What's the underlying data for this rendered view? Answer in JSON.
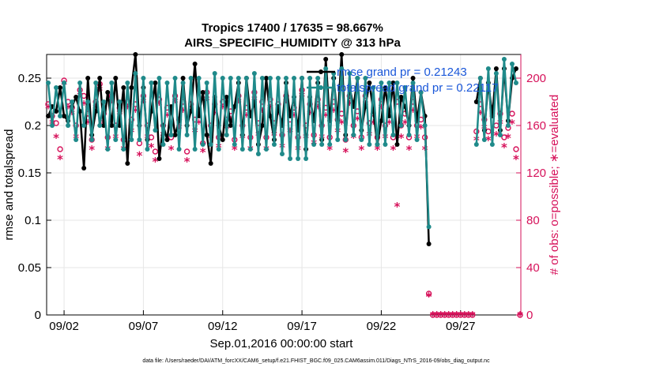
{
  "chart_data": {
    "type": "line",
    "title": "Tropics 17400 / 17635 = 98.667%",
    "subtitle": "AIRS_SPECIFIC_HUMIDITY @ 313 hPa",
    "xlabel": "Sep.01,2016 00:00:00 start",
    "ylabel": "rmse and totalspread",
    "y2label": "# of obs: o=possible; ∗=evaluated",
    "footer": "data file: /Users/raeder/DAI/ATM_forcXX/CAM6_setup/f.e21.FHIST_BGC.f09_025.CAM6assim.011/Diags_NTrS_2016-09/obs_diag_output.nc",
    "xlim": [
      0.9,
      30.8
    ],
    "ylim": [
      0,
      0.275
    ],
    "y2lim": [
      0,
      220
    ],
    "x_ticks": [
      2,
      7,
      12,
      17,
      22,
      27
    ],
    "x_tick_labels": [
      "09/02",
      "09/07",
      "09/12",
      "09/17",
      "09/22",
      "09/27"
    ],
    "y_ticks": [
      0,
      0.05,
      0.1,
      0.15,
      0.2,
      0.25
    ],
    "y_tick_labels": [
      "0",
      "0.05",
      "0.1",
      "0.15",
      "0.2",
      "0.25"
    ],
    "y2_ticks": [
      0,
      40,
      80,
      120,
      160,
      200
    ],
    "y2_tick_labels": [
      "0",
      "40",
      "80",
      "120",
      "160",
      "200"
    ],
    "legend": [
      {
        "label": "rmse grand pr = 0.21243",
        "color": "#000000"
      },
      {
        "label": "totalspread grand pr = 0.22117",
        "color": "#1f8a8a"
      }
    ],
    "series": [
      {
        "name": "rmse",
        "color": "#000000",
        "axis": "left",
        "x": [
          1.0,
          1.25,
          1.5,
          1.75,
          2.0,
          2.25,
          2.5,
          2.75,
          3.0,
          3.25,
          3.5,
          3.75,
          4.0,
          4.25,
          4.5,
          4.75,
          5.0,
          5.25,
          5.5,
          5.75,
          6.0,
          6.25,
          6.5,
          6.75,
          7.0,
          7.25,
          7.5,
          7.75,
          8.0,
          8.25,
          8.5,
          8.75,
          9.0,
          9.25,
          9.5,
          9.75,
          10.0,
          10.25,
          10.5,
          10.75,
          11.0,
          11.25,
          11.5,
          11.75,
          12.0,
          12.25,
          12.5,
          12.75,
          13.0,
          13.25,
          13.5,
          13.75,
          14.0,
          14.25,
          14.5,
          14.75,
          15.0,
          15.25,
          15.5,
          15.75,
          16.0,
          16.25,
          16.5,
          16.75,
          17.0,
          17.25,
          17.5,
          17.75,
          18.0,
          18.25,
          18.5,
          18.75,
          19.0,
          19.25,
          19.5,
          19.75,
          20.0,
          20.25,
          20.5,
          20.75,
          21.0,
          21.25,
          21.5,
          21.75,
          22.0,
          22.25,
          22.5,
          22.75,
          23.0,
          23.25,
          23.5,
          23.75,
          24.0,
          24.25,
          24.5,
          24.75,
          25.0,
          28.0,
          28.25,
          28.5,
          28.75,
          29.0,
          29.25,
          29.5,
          29.75,
          30.0,
          30.25,
          30.5
        ],
        "values": [
          0.21,
          0.22,
          0.215,
          0.24,
          0.21,
          0.205,
          0.22,
          0.23,
          0.215,
          0.155,
          0.25,
          0.19,
          0.215,
          0.25,
          0.2,
          0.235,
          0.2,
          0.25,
          0.2,
          0.24,
          0.16,
          0.24,
          0.275,
          0.2,
          0.24,
          0.185,
          0.215,
          0.245,
          0.165,
          0.2,
          0.185,
          0.22,
          0.19,
          0.205,
          0.25,
          0.2,
          0.215,
          0.265,
          0.21,
          0.235,
          0.19,
          0.16,
          0.23,
          0.2,
          0.185,
          0.23,
          0.2,
          0.22,
          0.245,
          0.19,
          0.25,
          0.21,
          0.225,
          0.18,
          0.2,
          0.25,
          0.21,
          0.185,
          0.22,
          0.2,
          0.245,
          0.21,
          0.23,
          0.195,
          0.25,
          0.175,
          0.23,
          0.205,
          0.245,
          0.185,
          0.27,
          0.205,
          0.25,
          0.205,
          0.275,
          0.19,
          0.24,
          0.22,
          0.25,
          0.195,
          0.22,
          0.245,
          0.215,
          0.18,
          0.205,
          0.24,
          0.21,
          0.245,
          0.18,
          0.23,
          0.22,
          0.2,
          0.25,
          0.205,
          0.235,
          0.21,
          0.075,
          0.225,
          0.25,
          0.195,
          0.245,
          0.21,
          0.26,
          0.195,
          0.26,
          0.205,
          0.25,
          0.26
        ]
      },
      {
        "name": "totalspread",
        "color": "#1f8a8a",
        "axis": "left",
        "x": [
          1.0,
          1.25,
          1.5,
          1.75,
          2.0,
          2.25,
          2.5,
          2.75,
          3.0,
          3.25,
          3.5,
          3.75,
          4.0,
          4.25,
          4.5,
          4.75,
          5.0,
          5.25,
          5.5,
          5.75,
          6.0,
          6.25,
          6.5,
          6.75,
          7.0,
          7.25,
          7.5,
          7.75,
          8.0,
          8.25,
          8.5,
          8.75,
          9.0,
          9.25,
          9.5,
          9.75,
          10.0,
          10.25,
          10.5,
          10.75,
          11.0,
          11.25,
          11.5,
          11.75,
          12.0,
          12.25,
          12.5,
          12.75,
          13.0,
          13.25,
          13.5,
          13.75,
          14.0,
          14.25,
          14.5,
          14.75,
          15.0,
          15.25,
          15.5,
          15.75,
          16.0,
          16.25,
          16.5,
          16.75,
          17.0,
          17.25,
          17.5,
          17.75,
          18.0,
          18.25,
          18.5,
          18.75,
          19.0,
          19.25,
          19.5,
          19.75,
          20.0,
          20.25,
          20.5,
          20.75,
          21.0,
          21.25,
          21.5,
          21.75,
          22.0,
          22.25,
          22.5,
          22.75,
          23.0,
          23.25,
          23.5,
          23.75,
          24.0,
          24.25,
          24.5,
          24.75,
          25.0,
          28.0,
          28.25,
          28.5,
          28.75,
          29.0,
          29.25,
          29.5,
          29.75,
          30.0,
          30.25,
          30.5
        ],
        "values": [
          0.245,
          0.2,
          0.24,
          0.21,
          0.245,
          0.2,
          0.225,
          0.185,
          0.245,
          0.2,
          0.225,
          0.185,
          0.245,
          0.2,
          0.225,
          0.175,
          0.245,
          0.185,
          0.225,
          0.175,
          0.245,
          0.185,
          0.255,
          0.185,
          0.25,
          0.175,
          0.245,
          0.195,
          0.25,
          0.18,
          0.245,
          0.19,
          0.25,
          0.175,
          0.245,
          0.19,
          0.25,
          0.175,
          0.25,
          0.18,
          0.245,
          0.18,
          0.255,
          0.175,
          0.25,
          0.19,
          0.25,
          0.18,
          0.25,
          0.175,
          0.25,
          0.175,
          0.255,
          0.17,
          0.25,
          0.175,
          0.25,
          0.18,
          0.25,
          0.17,
          0.25,
          0.165,
          0.25,
          0.165,
          0.25,
          0.165,
          0.25,
          0.18,
          0.25,
          0.18,
          0.26,
          0.18,
          0.255,
          0.185,
          0.26,
          0.185,
          0.255,
          0.19,
          0.25,
          0.185,
          0.25,
          0.18,
          0.24,
          0.18,
          0.245,
          0.18,
          0.245,
          0.19,
          0.245,
          0.2,
          0.24,
          0.19,
          0.245,
          0.185,
          0.235,
          0.2,
          0.093,
          0.18,
          0.25,
          0.185,
          0.26,
          0.18,
          0.255,
          0.19,
          0.27,
          0.2,
          0.265,
          0.245
        ]
      },
      {
        "name": "obs possible",
        "color": "#d6115a",
        "axis": "right",
        "marker": "o",
        "x": [
          1.0,
          1.25,
          1.5,
          1.75,
          2.0,
          2.25,
          2.5,
          2.75,
          3.0,
          3.25,
          3.5,
          3.75,
          4.0,
          4.25,
          4.5,
          4.75,
          5.0,
          5.25,
          5.5,
          5.75,
          6.0,
          6.25,
          6.5,
          6.75,
          7.0,
          7.25,
          7.5,
          7.75,
          8.0,
          8.25,
          8.5,
          8.75,
          9.0,
          9.25,
          9.5,
          9.75,
          10.0,
          10.25,
          10.5,
          10.75,
          11.0,
          11.25,
          11.5,
          11.75,
          12.0,
          12.25,
          12.5,
          12.75,
          13.0,
          13.25,
          13.5,
          13.75,
          14.0,
          14.25,
          14.5,
          14.75,
          15.0,
          15.25,
          15.5,
          15.75,
          16.0,
          16.25,
          16.5,
          16.75,
          17.0,
          17.25,
          17.5,
          17.75,
          18.0,
          18.25,
          18.5,
          18.75,
          19.0,
          19.25,
          19.5,
          19.75,
          20.0,
          20.25,
          20.5,
          20.75,
          21.0,
          21.25,
          21.5,
          21.75,
          22.0,
          22.25,
          22.5,
          22.75,
          23.0,
          23.25,
          23.5,
          23.75,
          24.0,
          24.25,
          24.5,
          24.75,
          25.0,
          25.25,
          25.5,
          25.75,
          26.0,
          26.25,
          26.5,
          26.75,
          27.0,
          27.25,
          27.5,
          27.75,
          28.0,
          28.25,
          28.5,
          28.75,
          29.0,
          29.25,
          29.5,
          29.75,
          30.0,
          30.25,
          30.5,
          30.75
        ],
        "values": [
          178,
          168,
          162,
          140,
          198,
          180,
          175,
          160,
          190,
          185,
          170,
          148,
          180,
          195,
          170,
          150,
          185,
          160,
          175,
          148,
          180,
          165,
          178,
          145,
          185,
          160,
          150,
          138,
          182,
          160,
          175,
          150,
          185,
          165,
          180,
          138,
          178,
          165,
          170,
          145,
          188,
          160,
          178,
          150,
          180,
          165,
          172,
          148,
          185,
          160,
          175,
          150,
          188,
          162,
          180,
          150,
          182,
          162,
          178,
          152,
          185,
          165,
          175,
          150,
          190,
          160,
          178,
          152,
          182,
          160,
          175,
          150,
          180,
          165,
          170,
          148,
          185,
          160,
          172,
          150,
          185,
          162,
          170,
          150,
          182,
          160,
          170,
          150,
          180,
          160,
          170,
          150,
          180,
          160,
          165,
          150,
          18,
          0,
          0,
          0,
          0,
          0,
          0,
          0,
          0,
          0,
          0,
          0,
          155,
          178,
          165,
          155,
          175,
          160,
          170,
          150,
          158,
          170,
          140,
          0
        ]
      },
      {
        "name": "obs evaluated",
        "color": "#d6115a",
        "axis": "right",
        "marker": "*",
        "x": [
          1.0,
          1.25,
          1.5,
          1.75,
          2.0,
          2.25,
          2.5,
          2.75,
          3.0,
          3.25,
          3.5,
          3.75,
          4.0,
          4.25,
          4.5,
          4.75,
          5.0,
          5.25,
          5.5,
          5.75,
          6.0,
          6.25,
          6.5,
          6.75,
          7.0,
          7.25,
          7.5,
          7.75,
          8.0,
          8.25,
          8.5,
          8.75,
          9.0,
          9.25,
          9.5,
          9.75,
          10.0,
          10.25,
          10.5,
          10.75,
          11.0,
          11.25,
          11.5,
          11.75,
          12.0,
          12.25,
          12.5,
          12.75,
          13.0,
          13.25,
          13.5,
          13.75,
          14.0,
          14.25,
          14.5,
          14.75,
          15.0,
          15.25,
          15.5,
          15.75,
          16.0,
          16.25,
          16.5,
          16.75,
          17.0,
          17.25,
          17.5,
          17.75,
          18.0,
          18.25,
          18.5,
          18.75,
          19.0,
          19.25,
          19.5,
          19.75,
          20.0,
          20.25,
          20.5,
          20.75,
          21.0,
          21.25,
          21.5,
          21.75,
          22.0,
          22.25,
          22.5,
          22.75,
          23.0,
          23.25,
          23.5,
          23.75,
          24.0,
          24.25,
          24.5,
          24.75,
          25.0,
          25.25,
          25.5,
          25.75,
          26.0,
          26.25,
          26.5,
          26.75,
          27.0,
          27.25,
          27.5,
          27.75,
          28.0,
          28.25,
          28.5,
          28.75,
          29.0,
          29.25,
          29.5,
          29.75,
          30.0,
          30.25,
          30.5,
          30.75
        ],
        "values": [
          175,
          162,
          150,
          132,
          195,
          175,
          170,
          150,
          185,
          178,
          162,
          140,
          175,
          190,
          162,
          140,
          180,
          150,
          170,
          140,
          175,
          155,
          172,
          135,
          180,
          150,
          142,
          130,
          178,
          152,
          168,
          140,
          180,
          158,
          172,
          130,
          172,
          155,
          162,
          138,
          182,
          150,
          170,
          142,
          175,
          158,
          165,
          140,
          180,
          150,
          168,
          140,
          182,
          152,
          172,
          140,
          175,
          152,
          170,
          142,
          180,
          155,
          168,
          140,
          185,
          150,
          170,
          145,
          175,
          150,
          168,
          140,
          172,
          155,
          162,
          138,
          178,
          150,
          165,
          140,
          178,
          152,
          162,
          140,
          175,
          150,
          162,
          140,
          92,
          150,
          162,
          140,
          172,
          150,
          158,
          140,
          16,
          0,
          0,
          0,
          0,
          0,
          0,
          0,
          0,
          0,
          0,
          0,
          148,
          170,
          158,
          148,
          168,
          152,
          162,
          142,
          150,
          162,
          132,
          0
        ]
      }
    ]
  }
}
